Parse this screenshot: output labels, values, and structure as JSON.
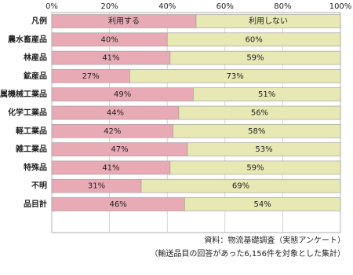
{
  "chart_data": {
    "type": "bar",
    "orientation": "horizontal",
    "stacked": true,
    "legend_label": "凡例",
    "categories": [
      "農水畜産品",
      "林産品",
      "鉱産品",
      "属機械工業品",
      "化学工業品",
      "軽工業品",
      "雑工業品",
      "特殊品",
      "不明",
      "品目計"
    ],
    "series": [
      {
        "name": "利用する",
        "color": "#e8abb5",
        "values": [
          40,
          41,
          27,
          49,
          44,
          42,
          47,
          41,
          31,
          46
        ],
        "value_labels": [
          "40%",
          "41%",
          "27%",
          "49%",
          "44%",
          "42%",
          "47%",
          "41%",
          "31%",
          "46%"
        ]
      },
      {
        "name": "利用しない",
        "color": "#e7e8b4",
        "values": [
          60,
          59,
          73,
          51,
          56,
          58,
          53,
          59,
          69,
          54
        ],
        "value_labels": [
          "60%",
          "59%",
          "73%",
          "51%",
          "56%",
          "58%",
          "53%",
          "59%",
          "69%",
          "54%"
        ]
      }
    ],
    "xlim": [
      0,
      100
    ],
    "xticks": [
      {
        "value": 0,
        "label": "0%"
      },
      {
        "value": 20,
        "label": "20%"
      },
      {
        "value": 40,
        "label": "40%"
      },
      {
        "value": 60,
        "label": "60%"
      },
      {
        "value": 80,
        "label": "80%"
      },
      {
        "value": 100,
        "label": "100%"
      }
    ],
    "grid": true,
    "notes": [
      "資料：物流基礎調査（実態アンケート）",
      "（輸送品目の回答があった6,156件を対象とした集計）"
    ]
  }
}
